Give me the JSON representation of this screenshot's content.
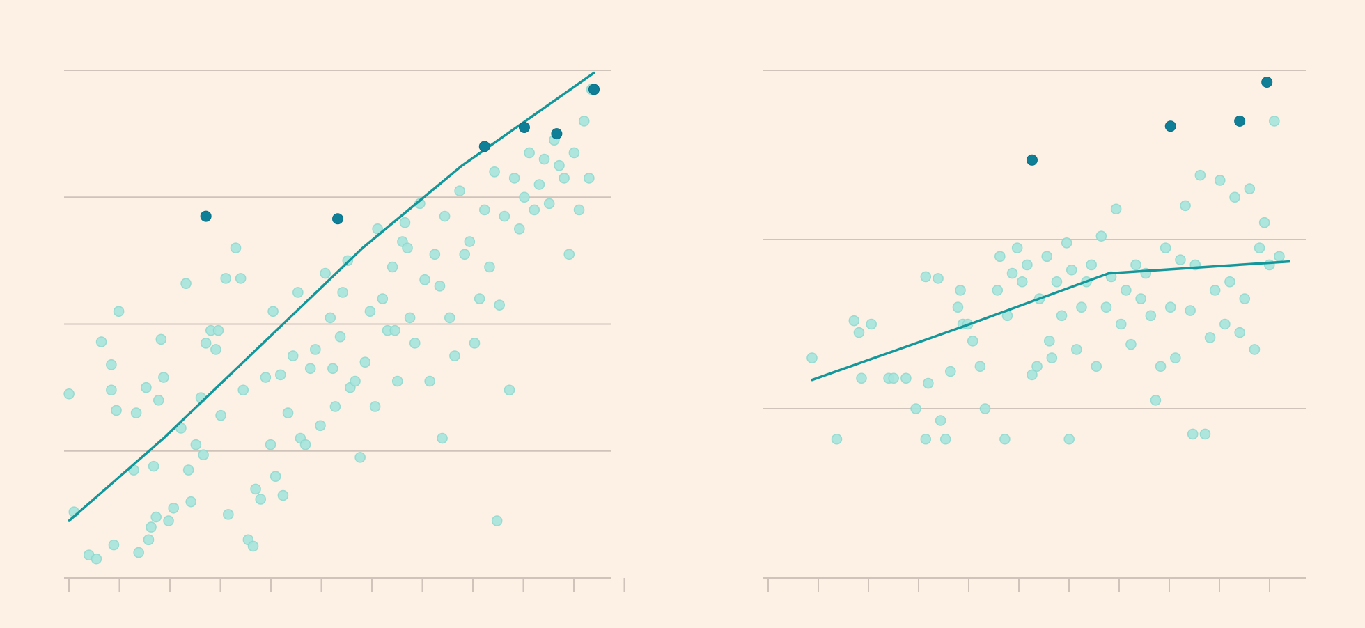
{
  "colors": {
    "background": "#fdf1e6",
    "point_fill": "#a6e5dd",
    "point_stroke": "#8fd9cf",
    "highlight": "#0e7f97",
    "trend_line": "#14979a",
    "gridline": "#cfc3ba"
  },
  "chart_data": [
    {
      "type": "scatter",
      "xlim": [
        0,
        11
      ],
      "ylim": [
        0,
        4
      ],
      "x_tick_count": 12,
      "grid": "horizontal",
      "y_gridlines": [
        1,
        2,
        3,
        4
      ],
      "trend": [
        [
          0.1,
          0.45
        ],
        [
          2,
          1.1
        ],
        [
          4,
          1.85
        ],
        [
          6,
          2.6
        ],
        [
          8,
          3.25
        ],
        [
          10.65,
          3.98
        ]
      ],
      "points": [
        [
          0.1,
          1.45
        ],
        [
          0.2,
          0.52
        ],
        [
          0.5,
          0.18
        ],
        [
          0.65,
          0.15
        ],
        [
          0.75,
          1.86
        ],
        [
          0.95,
          1.48
        ],
        [
          0.95,
          1.68
        ],
        [
          1.0,
          0.26
        ],
        [
          1.05,
          1.32
        ],
        [
          1.1,
          2.1
        ],
        [
          1.4,
          0.85
        ],
        [
          1.45,
          1.3
        ],
        [
          1.5,
          0.2
        ],
        [
          1.65,
          1.5
        ],
        [
          1.7,
          0.3
        ],
        [
          1.75,
          0.4
        ],
        [
          1.8,
          0.88
        ],
        [
          1.85,
          0.48
        ],
        [
          1.9,
          1.4
        ],
        [
          1.95,
          1.88
        ],
        [
          2.0,
          1.58
        ],
        [
          2.1,
          0.45
        ],
        [
          2.2,
          0.55
        ],
        [
          2.35,
          1.18
        ],
        [
          2.5,
          0.85
        ],
        [
          2.55,
          0.6
        ],
        [
          2.65,
          1.05
        ],
        [
          2.75,
          1.42
        ],
        [
          2.8,
          0.97
        ],
        [
          2.85,
          1.85
        ],
        [
          2.95,
          1.95
        ],
        [
          3.05,
          1.8
        ],
        [
          3.15,
          1.28
        ],
        [
          3.25,
          2.36
        ],
        [
          3.3,
          0.5
        ],
        [
          3.45,
          2.6
        ],
        [
          3.55,
          2.36
        ],
        [
          3.6,
          1.48
        ],
        [
          3.7,
          0.3
        ],
        [
          3.8,
          0.25
        ],
        [
          3.85,
          0.7
        ],
        [
          3.95,
          0.62
        ],
        [
          4.05,
          1.58
        ],
        [
          4.15,
          1.05
        ],
        [
          4.25,
          0.8
        ],
        [
          4.35,
          1.6
        ],
        [
          4.4,
          0.65
        ],
        [
          4.5,
          1.3
        ],
        [
          4.6,
          1.75
        ],
        [
          4.7,
          2.25
        ],
        [
          4.75,
          1.1
        ],
        [
          4.85,
          1.05
        ],
        [
          4.95,
          1.65
        ],
        [
          5.05,
          1.8
        ],
        [
          5.15,
          1.2
        ],
        [
          5.25,
          2.4
        ],
        [
          5.35,
          2.05
        ],
        [
          5.45,
          1.35
        ],
        [
          5.55,
          1.9
        ],
        [
          5.6,
          2.25
        ],
        [
          5.7,
          2.5
        ],
        [
          5.75,
          1.5
        ],
        [
          5.85,
          1.55
        ],
        [
          5.95,
          0.95
        ],
        [
          6.05,
          1.7
        ],
        [
          6.15,
          2.1
        ],
        [
          6.25,
          1.35
        ],
        [
          6.3,
          2.75
        ],
        [
          6.4,
          2.2
        ],
        [
          6.5,
          1.95
        ],
        [
          6.6,
          2.45
        ],
        [
          6.7,
          1.55
        ],
        [
          6.8,
          2.65
        ],
        [
          6.85,
          2.8
        ],
        [
          6.95,
          2.05
        ],
        [
          7.05,
          1.85
        ],
        [
          7.15,
          2.95
        ],
        [
          7.25,
          2.35
        ],
        [
          7.35,
          1.55
        ],
        [
          7.45,
          2.55
        ],
        [
          7.55,
          2.3
        ],
        [
          7.65,
          2.85
        ],
        [
          7.75,
          2.05
        ],
        [
          7.85,
          1.75
        ],
        [
          7.95,
          3.05
        ],
        [
          8.05,
          2.55
        ],
        [
          8.15,
          2.65
        ],
        [
          8.25,
          1.85
        ],
        [
          8.35,
          2.2
        ],
        [
          8.45,
          2.9
        ],
        [
          8.55,
          2.45
        ],
        [
          8.65,
          3.2
        ],
        [
          8.75,
          2.15
        ],
        [
          8.85,
          2.85
        ],
        [
          8.95,
          1.48
        ],
        [
          9.05,
          3.15
        ],
        [
          9.15,
          2.75
        ],
        [
          9.25,
          3.0
        ],
        [
          9.35,
          3.35
        ],
        [
          9.45,
          2.9
        ],
        [
          9.55,
          3.1
        ],
        [
          9.65,
          3.3
        ],
        [
          9.75,
          2.95
        ],
        [
          9.85,
          3.45
        ],
        [
          9.95,
          3.25
        ],
        [
          10.05,
          3.15
        ],
        [
          10.15,
          2.55
        ],
        [
          10.25,
          3.35
        ],
        [
          10.35,
          2.9
        ],
        [
          10.45,
          3.6
        ],
        [
          10.55,
          3.15
        ],
        [
          10.6,
          3.85
        ],
        [
          6.65,
          1.95
        ],
        [
          7.6,
          1.1
        ],
        [
          8.7,
          0.45
        ],
        [
          5.4,
          1.65
        ],
        [
          4.2,
          2.1
        ],
        [
          3.1,
          1.95
        ],
        [
          2.45,
          2.32
        ],
        [
          6.9,
          2.6
        ]
      ],
      "highlighted": [
        [
          2.85,
          2.85
        ],
        [
          5.5,
          2.83
        ],
        [
          8.45,
          3.4
        ],
        [
          9.25,
          3.55
        ],
        [
          9.9,
          3.5
        ],
        [
          10.65,
          3.85
        ]
      ]
    },
    {
      "type": "scatter",
      "xlim": [
        0,
        11
      ],
      "ylim": [
        0,
        3
      ],
      "x_tick_count": 11,
      "grid": "horizontal",
      "y_gridlines": [
        1,
        2,
        3
      ],
      "trend": [
        [
          1.0,
          1.17
        ],
        [
          4,
          1.48
        ],
        [
          7,
          1.8
        ],
        [
          10.65,
          1.87
        ]
      ],
      "points": [
        [
          1.0,
          1.3
        ],
        [
          1.5,
          0.82
        ],
        [
          1.85,
          1.52
        ],
        [
          1.95,
          1.45
        ],
        [
          2.0,
          1.18
        ],
        [
          2.2,
          1.5
        ],
        [
          2.55,
          1.18
        ],
        [
          2.65,
          1.18
        ],
        [
          3.1,
          1.0
        ],
        [
          3.3,
          1.78
        ],
        [
          3.3,
          0.82
        ],
        [
          3.35,
          1.15
        ],
        [
          3.55,
          1.77
        ],
        [
          3.6,
          0.93
        ],
        [
          3.7,
          0.82
        ],
        [
          3.8,
          1.22
        ],
        [
          3.95,
          1.6
        ],
        [
          4.0,
          1.7
        ],
        [
          4.05,
          1.5
        ],
        [
          4.15,
          1.5
        ],
        [
          4.25,
          1.4
        ],
        [
          4.4,
          1.25
        ],
        [
          4.5,
          1.0
        ],
        [
          4.75,
          1.7
        ],
        [
          4.8,
          1.9
        ],
        [
          4.95,
          1.55
        ],
        [
          5.05,
          1.8
        ],
        [
          5.15,
          1.95
        ],
        [
          5.25,
          1.75
        ],
        [
          5.35,
          1.85
        ],
        [
          5.45,
          1.2
        ],
        [
          5.55,
          1.25
        ],
        [
          5.6,
          1.65
        ],
        [
          5.75,
          1.9
        ],
        [
          5.85,
          1.3
        ],
        [
          5.95,
          1.75
        ],
        [
          6.05,
          1.55
        ],
        [
          6.15,
          1.98
        ],
        [
          6.25,
          1.82
        ],
        [
          6.35,
          1.35
        ],
        [
          6.45,
          1.6
        ],
        [
          6.55,
          1.75
        ],
        [
          6.65,
          1.85
        ],
        [
          6.75,
          1.25
        ],
        [
          6.85,
          2.02
        ],
        [
          6.95,
          1.6
        ],
        [
          7.05,
          1.78
        ],
        [
          7.15,
          2.18
        ],
        [
          7.25,
          1.5
        ],
        [
          7.35,
          1.7
        ],
        [
          7.45,
          1.38
        ],
        [
          7.55,
          1.85
        ],
        [
          7.65,
          1.65
        ],
        [
          7.75,
          1.8
        ],
        [
          7.85,
          1.55
        ],
        [
          7.95,
          1.05
        ],
        [
          8.05,
          1.25
        ],
        [
          8.15,
          1.95
        ],
        [
          8.25,
          1.6
        ],
        [
          8.35,
          1.3
        ],
        [
          8.45,
          1.88
        ],
        [
          8.55,
          2.2
        ],
        [
          8.65,
          1.58
        ],
        [
          8.75,
          1.85
        ],
        [
          8.85,
          2.38
        ],
        [
          8.95,
          0.85
        ],
        [
          9.05,
          1.42
        ],
        [
          9.15,
          1.7
        ],
        [
          9.25,
          2.35
        ],
        [
          9.35,
          1.5
        ],
        [
          9.45,
          1.75
        ],
        [
          9.55,
          2.25
        ],
        [
          9.65,
          1.45
        ],
        [
          9.75,
          1.65
        ],
        [
          9.85,
          2.3
        ],
        [
          9.95,
          1.35
        ],
        [
          10.05,
          1.95
        ],
        [
          10.15,
          2.1
        ],
        [
          10.25,
          1.85
        ],
        [
          10.35,
          2.7
        ],
        [
          10.45,
          1.9
        ],
        [
          6.2,
          0.82
        ],
        [
          4.9,
          0.82
        ],
        [
          8.7,
          0.85
        ],
        [
          2.9,
          1.18
        ],
        [
          5.8,
          1.4
        ]
      ],
      "highlighted": [
        [
          5.45,
          2.47
        ],
        [
          8.25,
          2.67
        ],
        [
          9.65,
          2.7
        ],
        [
          10.2,
          2.93
        ]
      ]
    }
  ]
}
